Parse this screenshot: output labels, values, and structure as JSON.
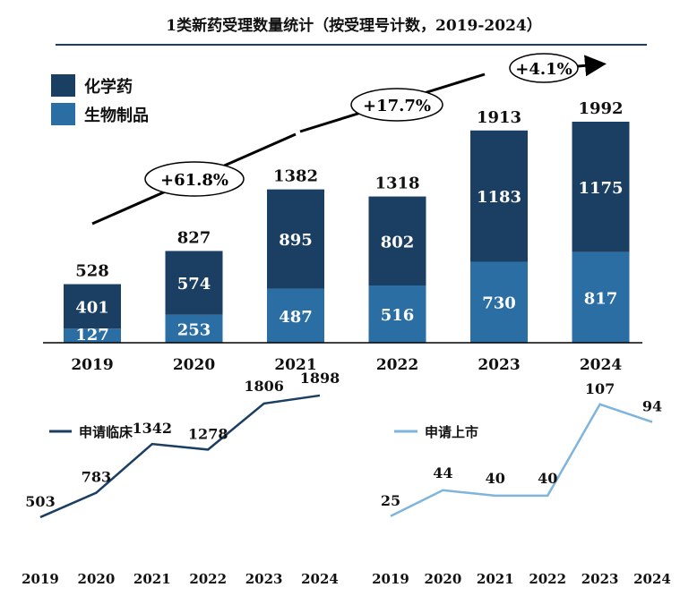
{
  "colors": {
    "chemical": "#1b3e63",
    "biological": "#2b6ea4",
    "clinical_line": "#1b3e63",
    "market_line": "#7fb4dc",
    "title_rule": "#1b3e63",
    "arrow": "#000000"
  },
  "chart_data": [
    {
      "type": "bar",
      "stacked": true,
      "title": "1类新药受理数量统计（按受理号计数，2019-2024）",
      "categories": [
        "2019",
        "2020",
        "2021",
        "2022",
        "2023",
        "2024"
      ],
      "series": [
        {
          "name": "生物制品",
          "values": [
            127,
            253,
            487,
            516,
            730,
            817
          ]
        },
        {
          "name": "化学药",
          "values": [
            401,
            574,
            895,
            802,
            1183,
            1175
          ]
        }
      ],
      "totals": [
        528,
        827,
        1382,
        1318,
        1913,
        1992
      ],
      "ylim": [
        0,
        2000
      ],
      "legend_position": "top-left",
      "growth_annotations": [
        "+61.8%",
        "+17.7%",
        "+4.1%"
      ]
    },
    {
      "type": "line",
      "legend": "申请临床",
      "x": [
        "2019",
        "2020",
        "2021",
        "2022",
        "2023",
        "2024"
      ],
      "values": [
        503,
        783,
        1342,
        1278,
        1806,
        1898
      ],
      "ylim": [
        400,
        2000
      ]
    },
    {
      "type": "line",
      "legend": "申请上市",
      "x": [
        "2019",
        "2020",
        "2021",
        "2022",
        "2023",
        "2024"
      ],
      "values": [
        25,
        44,
        40,
        40,
        107,
        94
      ],
      "ylim": [
        15,
        120
      ]
    }
  ]
}
